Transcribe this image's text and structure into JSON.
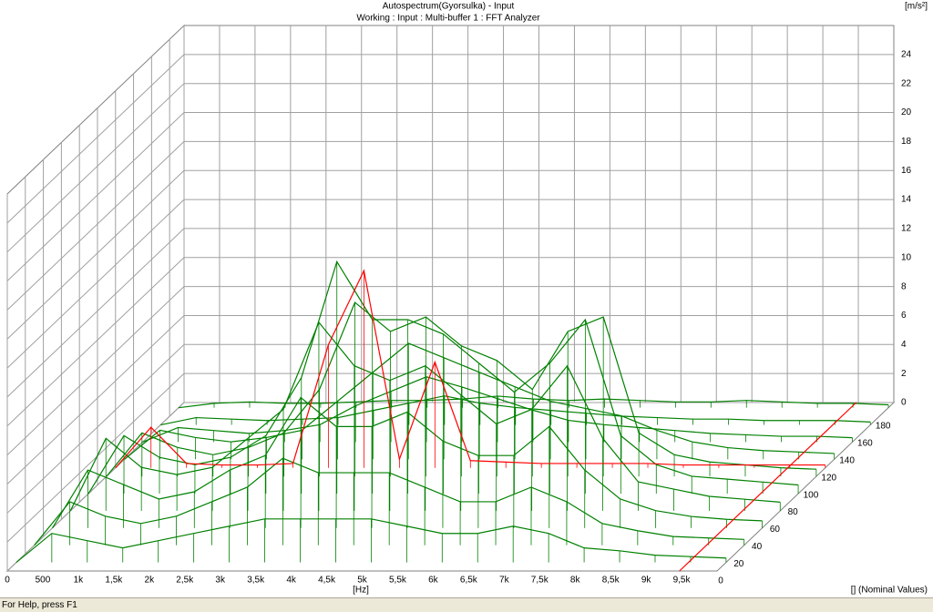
{
  "chart_data": {
    "type": "waterfall",
    "title": "Autospectrum(Gyorsulka) - Input",
    "subtitle": "Working : Input : Multi-buffer 1 : FFT Analyzer",
    "y_label": "[m/s²]",
    "x_label": "[Hz]",
    "z_label": "[] (Nominal Values)",
    "xlim": [
      0,
      10000
    ],
    "xticks": [
      0,
      500,
      {
        "value": 1000,
        "label": "1k"
      },
      {
        "value": 1500,
        "label": "1,5k"
      },
      {
        "value": 2000,
        "label": "2k"
      },
      {
        "value": 2500,
        "label": "2,5k"
      },
      {
        "value": 3000,
        "label": "3k"
      },
      {
        "value": 3500,
        "label": "3,5k"
      },
      {
        "value": 4000,
        "label": "4k"
      },
      {
        "value": 4500,
        "label": "4,5k"
      },
      {
        "value": 5000,
        "label": "5k"
      },
      {
        "value": 5500,
        "label": "5,5k"
      },
      {
        "value": 6000,
        "label": "6k"
      },
      {
        "value": 6500,
        "label": "6,5k"
      },
      {
        "value": 7000,
        "label": "7k"
      },
      {
        "value": 7500,
        "label": "7,5k"
      },
      {
        "value": 8000,
        "label": "8k"
      },
      {
        "value": 8500,
        "label": "8,5k"
      },
      {
        "value": 9000,
        "label": "9k"
      },
      {
        "value": 9500,
        "label": "9,5k"
      }
    ],
    "ylim": [
      0,
      26
    ],
    "yticks": [
      0,
      2,
      4,
      6,
      8,
      10,
      12,
      14,
      16,
      18,
      20,
      22,
      24
    ],
    "zlim": [
      0,
      196
    ],
    "zticks": [
      0,
      20,
      40,
      60,
      80,
      100,
      120,
      140,
      160,
      180
    ],
    "grid": true,
    "x": [
      0,
      500,
      1000,
      1500,
      2000,
      2500,
      3000,
      3500,
      4000,
      4500,
      5000,
      5500,
      6000,
      6500,
      7000,
      7500,
      8000,
      8500,
      9000,
      9500,
      10000
    ],
    "traces": [
      {
        "z": 190,
        "color": "#008000",
        "values": [
          0,
          0.3,
          0.4,
          0.3,
          0.3,
          0.4,
          0.5,
          0.5,
          0.6,
          0.8,
          0.6,
          0.5,
          0.6,
          0.5,
          0.4,
          0.4,
          0.5,
          0.4,
          0.3,
          0.3,
          0.2
        ]
      },
      {
        "z": 170,
        "color": "#008000",
        "values": [
          0,
          0.5,
          0.4,
          0.3,
          0.4,
          0.5,
          1.0,
          1.5,
          2.0,
          1.5,
          1.2,
          1.0,
          0.8,
          0.6,
          0.5,
          0.4,
          0.4,
          0.3,
          0.3,
          0.3,
          0.2
        ]
      },
      {
        "z": 150,
        "color": "#008000",
        "values": [
          0,
          1,
          0.8,
          0.6,
          0.8,
          1.2,
          2.5,
          3.5,
          4.5,
          3.8,
          3,
          2.2,
          1.5,
          1.2,
          1,
          0.8,
          0.6,
          0.5,
          0.4,
          0.4,
          0.3
        ]
      },
      {
        "z": 130,
        "color": "#008000",
        "values": [
          0,
          2,
          1.5,
          1.2,
          1.5,
          2,
          4,
          6,
          8,
          7,
          6,
          5,
          4,
          3.5,
          3,
          2,
          1.2,
          0.8,
          0.6,
          0.5,
          0.4
        ]
      },
      {
        "z": 110,
        "color": "#008000",
        "values": [
          0,
          3,
          2,
          1.5,
          2,
          3,
          6,
          12,
          10,
          11,
          9,
          8,
          6,
          10,
          11,
          3,
          1.5,
          1,
          0.8,
          0.6,
          0.5
        ]
      },
      {
        "z": 90,
        "color": "#008000",
        "values": [
          0,
          4,
          2.5,
          2,
          2.5,
          4,
          8,
          16,
          12,
          12,
          11,
          9,
          7,
          9,
          12,
          4,
          2,
          1.2,
          1,
          0.8,
          0.6
        ]
      },
      {
        "z": 70,
        "color": "#008000",
        "values": [
          0,
          5,
          3,
          2.5,
          3,
          5,
          7,
          13,
          10,
          9,
          10,
          8,
          6,
          7,
          10,
          5,
          2,
          1.5,
          1,
          0.8,
          0.6
        ]
      },
      {
        "z": 50,
        "color": "#008000",
        "values": [
          0,
          4,
          3,
          2,
          2.5,
          4,
          5,
          9,
          7,
          7,
          8,
          6,
          5,
          5,
          7,
          4,
          2,
          1.2,
          0.8,
          0.6,
          0.5
        ]
      },
      {
        "z": 30,
        "color": "#008000",
        "values": [
          0,
          3,
          2,
          1.5,
          2,
          3,
          4,
          6,
          5,
          5,
          5,
          4,
          3,
          3,
          4,
          3,
          1.5,
          1,
          0.6,
          0.5,
          0.4
        ]
      },
      {
        "z": 10,
        "color": "#008000",
        "values": [
          0,
          2,
          1.5,
          1,
          1.5,
          2,
          2.5,
          3,
          3,
          3,
          3,
          2.5,
          2,
          2,
          2.5,
          2,
          1,
          0.8,
          0.5,
          0.4,
          0.3
        ]
      },
      {
        "z": 120,
        "color": "#ff0000",
        "values": [
          0,
          2.8,
          0.3,
          0.2,
          0.2,
          0.3,
          8.5,
          13.6,
          0.6,
          7.3,
          0.5,
          0.4,
          0.3,
          0.3,
          0.3,
          0.3,
          0.2,
          0.2,
          0.2,
          0.2,
          0.2
        ]
      }
    ],
    "cursor_x": 9470,
    "cursor_color": "#ff0000",
    "status": "For Help, press F1"
  }
}
